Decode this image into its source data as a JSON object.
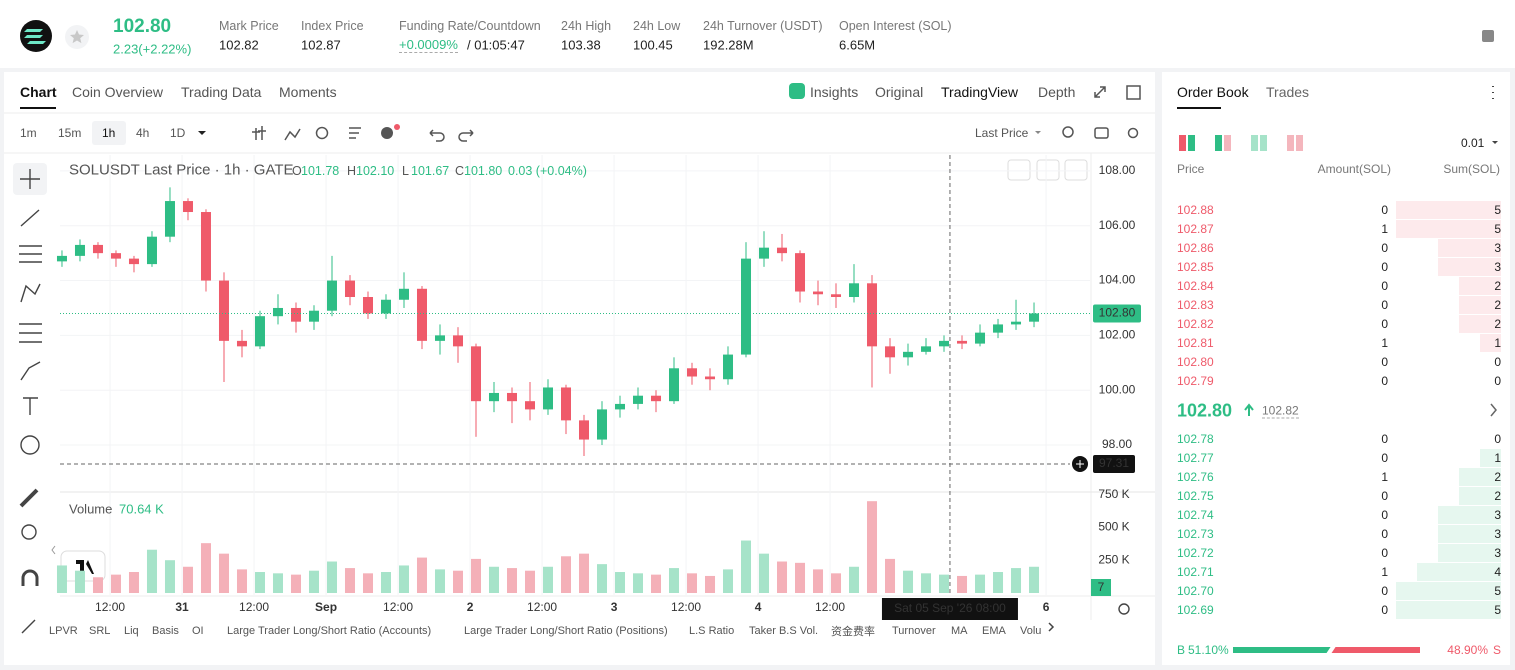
{
  "header": {
    "price": "102.80",
    "change": "2.23(+2.22%)",
    "stats": [
      {
        "label": "Mark Price",
        "value": "102.82"
      },
      {
        "label": "Index Price",
        "value": "102.87"
      },
      {
        "label": "Funding Rate/Countdown",
        "value": "+0.0009%",
        "extra": "/ 01:05:47"
      },
      {
        "label": "24h High",
        "value": "103.38"
      },
      {
        "label": "24h Low",
        "value": "100.45"
      },
      {
        "label": "24h Turnover (USDT)",
        "value": "192.28M"
      },
      {
        "label": "Open Interest (SOL)",
        "value": "6.65M"
      }
    ]
  },
  "chart_tabs": [
    "Chart",
    "Coin Overview",
    "Trading Data",
    "Moments"
  ],
  "view_tabs": [
    "Insights",
    "Original",
    "TradingView",
    "Depth"
  ],
  "intervals": [
    "1m",
    "15m",
    "1h",
    "4h",
    "1D"
  ],
  "price_type": "Last Price",
  "indicators": [
    "LPVR",
    "SRL",
    "Liq",
    "Basis",
    "OI",
    "Large Trader Long/Short Ratio (Accounts)",
    "Large Trader Long/Short Ratio (Positions)",
    "L.S Ratio",
    "Taker B.S Vol.",
    "资金费率",
    "Turnover",
    "MA",
    "EMA",
    "Volu"
  ],
  "chart_data": {
    "type": "candlestick",
    "title": "SOLUSDT Last Price · 1h · GATE",
    "ohlc_legend": [
      {
        "key": "O",
        "value": "101.78"
      },
      {
        "key": "H",
        "value": "102.10"
      },
      {
        "key": "L",
        "value": "101.67"
      },
      {
        "key": "C",
        "value": "101.80"
      }
    ],
    "legend_change": "0.03 (+0.04%)",
    "up_color": "#2ebd85",
    "down_color": "#ef5a6a",
    "open": [
      104.7,
      104.9,
      105.3,
      105.0,
      104.8,
      104.6,
      105.6,
      106.9,
      106.5,
      104.0,
      101.8,
      101.6,
      102.7,
      103.0,
      102.5,
      102.9,
      104.0,
      103.4,
      102.8,
      103.3,
      103.7,
      101.8,
      102.0,
      101.6,
      99.6,
      99.9,
      99.6,
      99.3,
      100.1,
      98.9,
      98.2,
      99.3,
      99.5,
      99.8,
      99.6,
      100.8,
      100.5,
      100.4,
      101.3,
      104.8,
      105.2,
      105.0,
      103.6,
      103.5,
      103.4,
      103.9,
      101.6,
      101.2,
      101.4,
      101.6,
      101.8,
      101.7,
      102.1,
      102.4,
      102.5
    ],
    "high": [
      105.1,
      105.5,
      105.4,
      105.1,
      104.9,
      105.8,
      107.4,
      107.0,
      106.6,
      104.3,
      102.2,
      102.9,
      103.5,
      103.2,
      103.1,
      104.9,
      104.2,
      103.6,
      103.5,
      104.3,
      103.8,
      102.4,
      102.3,
      101.7,
      100.3,
      100.1,
      100.3,
      100.4,
      100.2,
      99.1,
      99.6,
      99.8,
      100.1,
      100.0,
      101.2,
      101.0,
      100.8,
      101.6,
      105.4,
      105.8,
      105.7,
      105.1,
      104.0,
      103.9,
      104.6,
      104.2,
      101.9,
      101.7,
      101.9,
      102.0,
      102.0,
      102.4,
      102.6,
      103.3,
      103.2
    ],
    "low": [
      104.5,
      104.7,
      104.8,
      104.5,
      104.3,
      104.5,
      105.4,
      106.2,
      103.6,
      100.3,
      101.2,
      101.5,
      102.4,
      102.1,
      102.2,
      102.7,
      103.1,
      102.6,
      102.6,
      103.0,
      101.5,
      101.3,
      101.0,
      98.3,
      99.2,
      98.8,
      98.9,
      99.1,
      98.4,
      97.6,
      98.0,
      99.0,
      99.3,
      99.2,
      99.5,
      100.2,
      100.0,
      100.2,
      101.2,
      104.5,
      104.7,
      103.2,
      103.1,
      103.0,
      103.2,
      100.1,
      100.6,
      100.9,
      101.3,
      101.4,
      101.5,
      101.6,
      101.9,
      102.2,
      102.3
    ],
    "close": [
      104.9,
      105.3,
      105.0,
      104.8,
      104.6,
      105.6,
      106.9,
      106.5,
      104.0,
      101.8,
      101.6,
      102.7,
      103.0,
      102.5,
      102.9,
      104.0,
      103.4,
      102.8,
      103.3,
      103.7,
      101.8,
      102.0,
      101.6,
      99.6,
      99.9,
      99.6,
      99.3,
      100.1,
      98.9,
      98.2,
      99.3,
      99.5,
      99.8,
      99.6,
      100.8,
      100.5,
      100.4,
      101.3,
      104.8,
      105.2,
      105.0,
      103.6,
      103.5,
      103.4,
      103.9,
      101.6,
      101.2,
      101.4,
      101.6,
      101.8,
      101.7,
      102.1,
      102.4,
      102.5,
      102.8
    ],
    "ylim": [
      96.36,
      108.58
    ],
    "yticks": [
      {
        "value": 98,
        "label": "98.00"
      },
      {
        "value": 100,
        "label": "100.00"
      },
      {
        "value": 102,
        "label": "102.00"
      },
      {
        "value": 104,
        "label": "104.00"
      },
      {
        "value": 106,
        "label": "106.00"
      },
      {
        "value": 108,
        "label": "108.00"
      }
    ],
    "xlim": [
      -0.11,
      57.11
    ],
    "xticks": [
      {
        "value": 2.67,
        "label": "12:00"
      },
      {
        "value": 6.67,
        "label": "31"
      },
      {
        "value": 10.67,
        "label": "12:00"
      },
      {
        "value": 14.67,
        "label": "Sep"
      },
      {
        "value": 18.67,
        "label": "12:00"
      },
      {
        "value": 22.67,
        "label": "2"
      },
      {
        "value": 26.67,
        "label": "12:00"
      },
      {
        "value": 30.67,
        "label": "3"
      },
      {
        "value": 34.67,
        "label": "12:00"
      },
      {
        "value": 38.67,
        "label": "4"
      },
      {
        "value": 42.67,
        "label": "12:00"
      },
      {
        "value": 54.67,
        "label": "6"
      }
    ],
    "last_price": {
      "value": 102.8,
      "label": "102.80"
    },
    "crosshair": {
      "x": 49.33,
      "x_label": "Sat 05 Sep '26   08:00",
      "y": 97.31
    },
    "grid": true,
    "volume": {
      "title": "Volume",
      "value_label": "70.64 K",
      "badge": "7",
      "values": [
        210,
        170,
        120,
        140,
        160,
        330,
        250,
        200,
        380,
        300,
        180,
        160,
        150,
        140,
        170,
        240,
        190,
        150,
        160,
        210,
        270,
        180,
        170,
        260,
        200,
        190,
        170,
        200,
        280,
        300,
        220,
        160,
        150,
        140,
        190,
        150,
        130,
        180,
        400,
        300,
        240,
        230,
        180,
        150,
        200,
        700,
        260,
        170,
        150,
        140,
        130,
        140,
        160,
        190,
        200
      ],
      "ylim": [
        0,
        770
      ],
      "yticks": [
        {
          "value": 250,
          "label": "250 K"
        },
        {
          "value": 500,
          "label": "500 K"
        },
        {
          "value": 750,
          "label": "750 K"
        }
      ]
    }
  },
  "order_book": {
    "tabs": [
      "Order Book",
      "Trades"
    ],
    "precision": "0.01",
    "columns": [
      "Price",
      "Amount(SOL)",
      "Sum(SOL)"
    ],
    "asks": {
      "price": [
        "102.88",
        "102.87",
        "102.86",
        "102.85",
        "102.84",
        "102.83",
        "102.82",
        "102.81",
        "102.80",
        "102.79"
      ],
      "amount": [
        0,
        1,
        0,
        0,
        0,
        0,
        0,
        1,
        0,
        0
      ],
      "sum": [
        5,
        5,
        3,
        3,
        2,
        2,
        2,
        1,
        0,
        0
      ]
    },
    "mid_price": "102.80",
    "mark_price": "102.82",
    "bids": {
      "price": [
        "102.78",
        "102.77",
        "102.76",
        "102.75",
        "102.74",
        "102.73",
        "102.72",
        "102.71",
        "102.70",
        "102.69"
      ],
      "amount": [
        0,
        0,
        1,
        0,
        0,
        0,
        0,
        1,
        0,
        0
      ],
      "sum": [
        0,
        1,
        2,
        2,
        3,
        3,
        3,
        4,
        5,
        5
      ]
    },
    "buy": {
      "label": "B",
      "pct": {
        "value": 51.1,
        "label": "51.10%"
      }
    },
    "sell": {
      "label": "S",
      "pct": {
        "value": 48.9,
        "label": "48.90%"
      }
    }
  }
}
